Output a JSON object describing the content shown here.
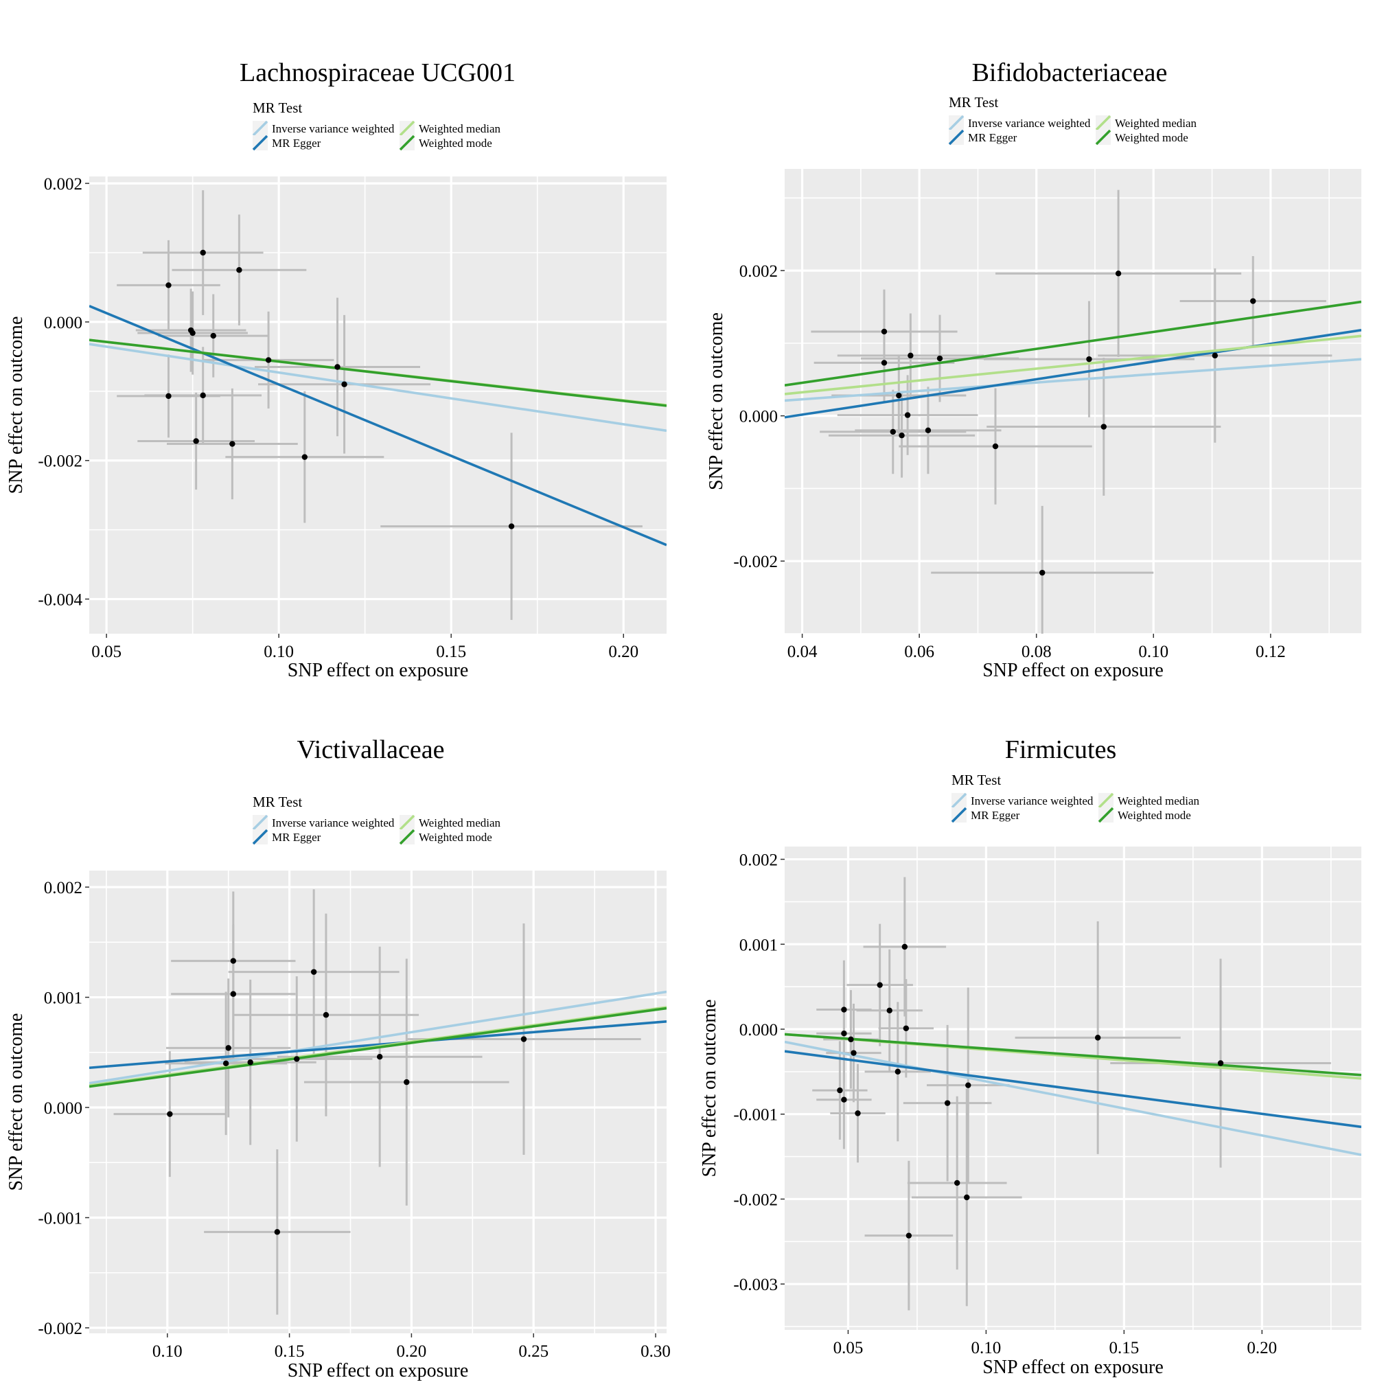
{
  "colors": {
    "panel_bg": "#EBEBEB",
    "grid": "#FFFFFF",
    "errorbar": "#BDBDBD",
    "point": "#000000",
    "ivw": "#A6CEE3",
    "egger": "#1F78B4",
    "wmedian": "#B2DF8A",
    "wmode": "#33A02C"
  },
  "legend": {
    "title": "MR Test",
    "entries": [
      {
        "key": "ivw",
        "label": "Inverse variance weighted"
      },
      {
        "key": "egger",
        "label": "MR Egger"
      },
      {
        "key": "wmedian",
        "label": "Weighted median"
      },
      {
        "key": "wmode",
        "label": "Weighted mode"
      }
    ]
  },
  "chart_data": [
    {
      "type": "scatter",
      "title": "Lachnospiraceae UCG001",
      "xlabel": "SNP effect on exposure",
      "ylabel": "SNP effect on outcome",
      "xlim": [
        0.045,
        0.2125
      ],
      "ylim": [
        -0.0045,
        0.0021
      ],
      "xticks": [
        0.05,
        0.1,
        0.15,
        0.2
      ],
      "xtick_labels": [
        "0.05",
        "0.10",
        "0.15",
        "0.20"
      ],
      "yticks": [
        0.002,
        0.0,
        -0.002,
        -0.004
      ],
      "ytick_labels": [
        "0.002",
        "0.000",
        "-0.002",
        "-0.004"
      ],
      "points": [
        {
          "x": 0.068,
          "y": 0.00053,
          "xerr": 0.015,
          "yerr": 0.00065
        },
        {
          "x": 0.078,
          "y": 0.001,
          "xerr": 0.0175,
          "yerr": 0.0009
        },
        {
          "x": 0.0885,
          "y": 0.00075,
          "xerr": 0.0195,
          "yerr": 0.0008
        },
        {
          "x": 0.0745,
          "y": -0.00012,
          "xerr": 0.016,
          "yerr": 0.0006
        },
        {
          "x": 0.075,
          "y": -0.00016,
          "xerr": 0.016,
          "yerr": 0.0006
        },
        {
          "x": 0.081,
          "y": -0.0002,
          "xerr": 0.016,
          "yerr": 0.0006
        },
        {
          "x": 0.097,
          "y": -0.00055,
          "xerr": 0.019,
          "yerr": 0.0007
        },
        {
          "x": 0.117,
          "y": -0.00065,
          "xerr": 0.024,
          "yerr": 0.001
        },
        {
          "x": 0.119,
          "y": -0.0009,
          "xerr": 0.025,
          "yerr": 0.001
        },
        {
          "x": 0.068,
          "y": -0.00107,
          "xerr": 0.015,
          "yerr": 0.0006
        },
        {
          "x": 0.078,
          "y": -0.00106,
          "xerr": 0.017,
          "yerr": 0.0007
        },
        {
          "x": 0.076,
          "y": -0.00172,
          "xerr": 0.017,
          "yerr": 0.0007
        },
        {
          "x": 0.0865,
          "y": -0.00176,
          "xerr": 0.019,
          "yerr": 0.0008
        },
        {
          "x": 0.1075,
          "y": -0.00195,
          "xerr": 0.023,
          "yerr": 0.00095
        },
        {
          "x": 0.1675,
          "y": -0.00295,
          "xerr": 0.038,
          "yerr": 0.00135
        }
      ],
      "lines": [
        {
          "key": "ivw",
          "x": [
            0.045,
            0.2125
          ],
          "y": [
            -0.00032,
            -0.00157
          ]
        },
        {
          "key": "egger",
          "x": [
            0.045,
            0.2125
          ],
          "y": [
            0.00023,
            -0.00322
          ]
        },
        {
          "key": "wmedian",
          "x": [
            0.045,
            0.2125
          ],
          "y": [
            -0.00026,
            -0.0012
          ]
        },
        {
          "key": "wmode",
          "x": [
            0.045,
            0.2125
          ],
          "y": [
            -0.00026,
            -0.00121
          ]
        }
      ]
    },
    {
      "type": "scatter",
      "title": "Bifidobacteriaceae",
      "xlabel": "SNP effect on exposure",
      "ylabel": "SNP effect on outcome",
      "xlim": [
        0.037,
        0.1355
      ],
      "ylim": [
        -0.003,
        0.0034
      ],
      "xticks": [
        0.04,
        0.06,
        0.08,
        0.1,
        0.12
      ],
      "xtick_labels": [
        "0.04",
        "0.06",
        "0.08",
        "0.10",
        "0.12"
      ],
      "yticks": [
        0.002,
        0.0,
        -0.002
      ],
      "ytick_labels": [
        "0.002",
        "0.000",
        "-0.002"
      ],
      "points": [
        {
          "x": 0.054,
          "y": 0.00116,
          "xerr": 0.0125,
          "yerr": 0.00058
        },
        {
          "x": 0.054,
          "y": 0.00073,
          "xerr": 0.012,
          "yerr": 0.00055
        },
        {
          "x": 0.0585,
          "y": 0.00083,
          "xerr": 0.0125,
          "yerr": 0.00058
        },
        {
          "x": 0.0635,
          "y": 0.00079,
          "xerr": 0.0135,
          "yerr": 0.0006
        },
        {
          "x": 0.0565,
          "y": 0.00028,
          "xerr": 0.0115,
          "yerr": 0.00055
        },
        {
          "x": 0.058,
          "y": 1e-05,
          "xerr": 0.012,
          "yerr": 0.00055
        },
        {
          "x": 0.0555,
          "y": -0.00022,
          "xerr": 0.0125,
          "yerr": 0.00058
        },
        {
          "x": 0.057,
          "y": -0.00027,
          "xerr": 0.0125,
          "yerr": 0.00058
        },
        {
          "x": 0.0615,
          "y": -0.0002,
          "xerr": 0.0125,
          "yerr": 0.0006
        },
        {
          "x": 0.073,
          "y": -0.00042,
          "xerr": 0.0165,
          "yerr": 0.0008
        },
        {
          "x": 0.089,
          "y": 0.00078,
          "xerr": 0.018,
          "yerr": 0.0008
        },
        {
          "x": 0.094,
          "y": 0.00196,
          "xerr": 0.021,
          "yerr": 0.00115
        },
        {
          "x": 0.0915,
          "y": -0.00015,
          "xerr": 0.02,
          "yerr": 0.00095
        },
        {
          "x": 0.081,
          "y": -0.00216,
          "xerr": 0.019,
          "yerr": 0.00092
        },
        {
          "x": 0.1105,
          "y": 0.00083,
          "xerr": 0.02,
          "yerr": 0.0012
        },
        {
          "x": 0.117,
          "y": 0.00158,
          "xerr": 0.0125,
          "yerr": 0.00062
        }
      ],
      "lines": [
        {
          "key": "ivw",
          "x": [
            0.037,
            0.1355
          ],
          "y": [
            0.00021,
            0.00078
          ]
        },
        {
          "key": "egger",
          "x": [
            0.037,
            0.1355
          ],
          "y": [
            -2e-05,
            0.00118
          ]
        },
        {
          "key": "wmedian",
          "x": [
            0.037,
            0.1355
          ],
          "y": [
            0.0003,
            0.0011
          ]
        },
        {
          "key": "wmode",
          "x": [
            0.037,
            0.1355
          ],
          "y": [
            0.00042,
            0.00157
          ]
        }
      ]
    },
    {
      "type": "scatter",
      "title": "Victivallaceae",
      "xlabel": "SNP effect on exposure",
      "ylabel": "SNP effect on outcome",
      "xlim": [
        0.068,
        0.3045
      ],
      "ylim": [
        -0.00205,
        0.00215
      ],
      "xticks": [
        0.1,
        0.15,
        0.2,
        0.25,
        0.3
      ],
      "xtick_labels": [
        "0.10",
        "0.15",
        "0.20",
        "0.25",
        "0.30"
      ],
      "yticks": [
        0.002,
        0.001,
        0.0,
        -0.001,
        -0.002
      ],
      "ytick_labels": [
        "0.002",
        "0.001",
        "0.000",
        "-0.001",
        "-0.002"
      ],
      "points": [
        {
          "x": 0.101,
          "y": -6e-05,
          "xerr": 0.023,
          "yerr": 0.00057
        },
        {
          "x": 0.127,
          "y": 0.00133,
          "xerr": 0.0255,
          "yerr": 0.00063
        },
        {
          "x": 0.127,
          "y": 0.00103,
          "xerr": 0.0255,
          "yerr": 0.00063
        },
        {
          "x": 0.125,
          "y": 0.00054,
          "xerr": 0.0255,
          "yerr": 0.00063
        },
        {
          "x": 0.124,
          "y": 0.0004,
          "xerr": 0.025,
          "yerr": 0.00065
        },
        {
          "x": 0.134,
          "y": 0.00041,
          "xerr": 0.027,
          "yerr": 0.00075
        },
        {
          "x": 0.153,
          "y": 0.00044,
          "xerr": 0.031,
          "yerr": 0.00075
        },
        {
          "x": 0.16,
          "y": 0.00123,
          "xerr": 0.035,
          "yerr": 0.00075
        },
        {
          "x": 0.165,
          "y": 0.00084,
          "xerr": 0.038,
          "yerr": 0.00092
        },
        {
          "x": 0.187,
          "y": 0.00046,
          "xerr": 0.042,
          "yerr": 0.001
        },
        {
          "x": 0.198,
          "y": 0.00023,
          "xerr": 0.042,
          "yerr": 0.00112
        },
        {
          "x": 0.246,
          "y": 0.00062,
          "xerr": 0.048,
          "yerr": 0.00105
        },
        {
          "x": 0.145,
          "y": -0.00113,
          "xerr": 0.03,
          "yerr": 0.00075
        }
      ],
      "lines": [
        {
          "key": "ivw",
          "x": [
            0.068,
            0.3045
          ],
          "y": [
            0.00022,
            0.00105
          ]
        },
        {
          "key": "egger",
          "x": [
            0.068,
            0.3045
          ],
          "y": [
            0.00036,
            0.00078
          ]
        },
        {
          "key": "wmedian",
          "x": [
            0.068,
            0.3045
          ],
          "y": [
            0.0002,
            0.00091
          ]
        },
        {
          "key": "wmode",
          "x": [
            0.068,
            0.3045
          ],
          "y": [
            0.00019,
            0.0009
          ]
        }
      ]
    },
    {
      "type": "scatter",
      "title": "Firmicutes",
      "xlabel": "SNP effect on exposure",
      "ylabel": "SNP effect on outcome",
      "xlim": [
        0.027,
        0.236
      ],
      "ylim": [
        -0.00354,
        0.00215
      ],
      "xticks": [
        0.05,
        0.1,
        0.15,
        0.2
      ],
      "xtick_labels": [
        "0.05",
        "0.10",
        "0.15",
        "0.20"
      ],
      "yticks": [
        0.002,
        0.001,
        0.0,
        -0.001,
        -0.002,
        -0.003
      ],
      "ytick_labels": [
        "0.002",
        "0.001",
        "0.000",
        "-0.001",
        "-0.002",
        "-0.003"
      ],
      "points": [
        {
          "x": 0.0485,
          "y": 0.00023,
          "xerr": 0.01,
          "yerr": 0.00058
        },
        {
          "x": 0.0485,
          "y": -5e-05,
          "xerr": 0.01,
          "yerr": 0.00058
        },
        {
          "x": 0.051,
          "y": -0.00012,
          "xerr": 0.01,
          "yerr": 0.00058
        },
        {
          "x": 0.052,
          "y": -0.00028,
          "xerr": 0.01,
          "yerr": 0.00058
        },
        {
          "x": 0.047,
          "y": -0.00072,
          "xerr": 0.01,
          "yerr": 0.00058
        },
        {
          "x": 0.0485,
          "y": -0.00083,
          "xerr": 0.01,
          "yerr": 0.00058
        },
        {
          "x": 0.0535,
          "y": -0.00099,
          "xerr": 0.01,
          "yerr": 0.00058
        },
        {
          "x": 0.0615,
          "y": 0.00052,
          "xerr": 0.012,
          "yerr": 0.00072
        },
        {
          "x": 0.065,
          "y": 0.00022,
          "xerr": 0.012,
          "yerr": 0.00072
        },
        {
          "x": 0.0705,
          "y": 0.00097,
          "xerr": 0.015,
          "yerr": 0.00082
        },
        {
          "x": 0.071,
          "y": 1e-05,
          "xerr": 0.01,
          "yerr": 0.00058
        },
        {
          "x": 0.068,
          "y": -0.0005,
          "xerr": 0.012,
          "yerr": 0.00082
        },
        {
          "x": 0.086,
          "y": -0.00087,
          "xerr": 0.016,
          "yerr": 0.00092
        },
        {
          "x": 0.0935,
          "y": -0.00066,
          "xerr": 0.015,
          "yerr": 0.00115
        },
        {
          "x": 0.0895,
          "y": -0.00181,
          "xerr": 0.018,
          "yerr": 0.00102
        },
        {
          "x": 0.093,
          "y": -0.00198,
          "xerr": 0.02,
          "yerr": 0.00128
        },
        {
          "x": 0.072,
          "y": -0.00243,
          "xerr": 0.016,
          "yerr": 0.00088
        },
        {
          "x": 0.1405,
          "y": -0.0001,
          "xerr": 0.03,
          "yerr": 0.00137
        },
        {
          "x": 0.185,
          "y": -0.0004,
          "xerr": 0.04,
          "yerr": 0.00123
        }
      ],
      "lines": [
        {
          "key": "ivw",
          "x": [
            0.027,
            0.236
          ],
          "y": [
            -0.00015,
            -0.00148
          ]
        },
        {
          "key": "egger",
          "x": [
            0.027,
            0.236
          ],
          "y": [
            -0.00026,
            -0.00115
          ]
        },
        {
          "key": "wmedian",
          "x": [
            0.027,
            0.236
          ],
          "y": [
            -6e-05,
            -0.00058
          ]
        },
        {
          "key": "wmode",
          "x": [
            0.027,
            0.236
          ],
          "y": [
            -6e-05,
            -0.00054
          ]
        }
      ]
    }
  ]
}
